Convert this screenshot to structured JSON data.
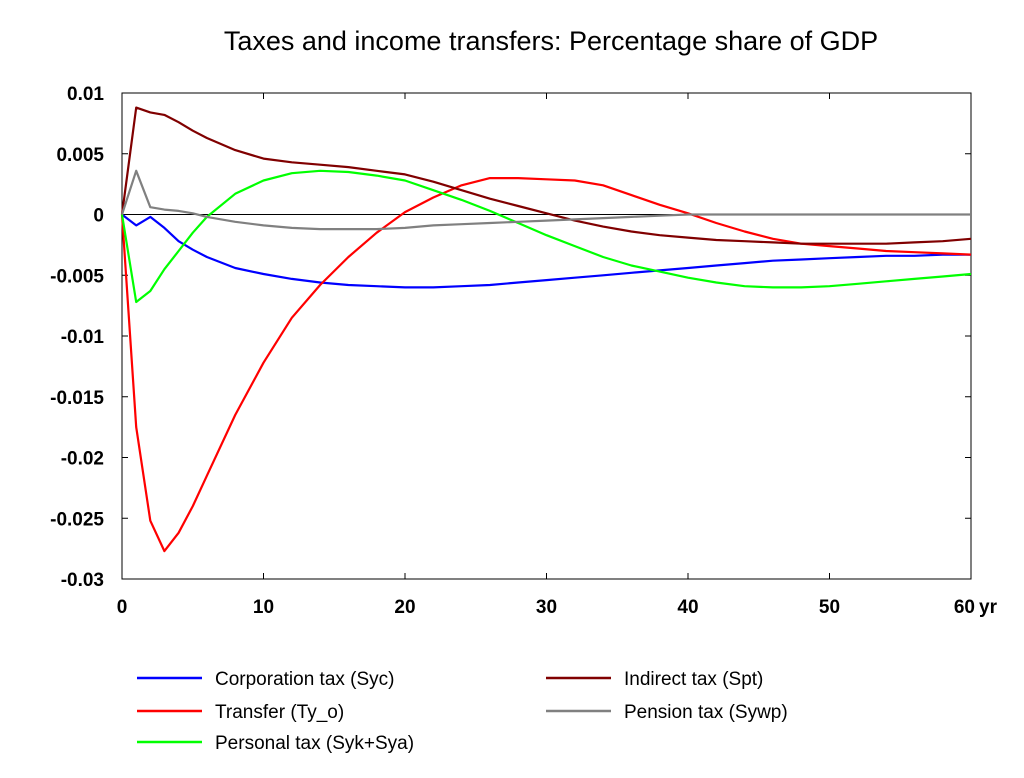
{
  "chart_data": {
    "type": "line",
    "title": "Taxes and income transfers: Percentage share of GDP",
    "xlabel": "",
    "ylabel": "",
    "x_unit_label": "yr",
    "xlim": [
      0,
      60
    ],
    "ylim": [
      -0.03,
      0.01
    ],
    "x_ticks": [
      0,
      10,
      20,
      30,
      40,
      50,
      60
    ],
    "x_tick_labels": [
      "0",
      "10",
      "20",
      "30",
      "40",
      "50",
      "60"
    ],
    "y_ticks": [
      0.01,
      0.005,
      0,
      -0.005,
      -0.01,
      -0.015,
      -0.02,
      -0.025,
      -0.03
    ],
    "y_tick_labels": [
      "0.01",
      "0.005",
      "0",
      "-0.005",
      "-0.01",
      "-0.015",
      "-0.02",
      "-0.025",
      "-0.03"
    ],
    "grid": false,
    "zero_line": true,
    "legend_position": "bottom",
    "x": [
      0,
      1,
      2,
      3,
      4,
      5,
      6,
      8,
      10,
      12,
      14,
      16,
      18,
      20,
      22,
      24,
      26,
      28,
      30,
      32,
      34,
      36,
      38,
      40,
      42,
      44,
      46,
      48,
      50,
      52,
      54,
      56,
      58,
      60
    ],
    "series": [
      {
        "name": "Corporation tax (Syc)",
        "color": "#0000ff",
        "values": [
          0,
          -0.0009,
          -0.0002,
          -0.0011,
          -0.0022,
          -0.0029,
          -0.0035,
          -0.0044,
          -0.0049,
          -0.0053,
          -0.0056,
          -0.0058,
          -0.0059,
          -0.006,
          -0.006,
          -0.0059,
          -0.0058,
          -0.0056,
          -0.0054,
          -0.0052,
          -0.005,
          -0.0048,
          -0.0046,
          -0.0044,
          -0.0042,
          -0.004,
          -0.0038,
          -0.0037,
          -0.0036,
          -0.0035,
          -0.0034,
          -0.0034,
          -0.0033,
          -0.0033
        ]
      },
      {
        "name": "Transfer (Ty_o)",
        "color": "#ff0000",
        "values": [
          0,
          -0.0175,
          -0.0252,
          -0.0277,
          -0.0262,
          -0.024,
          -0.0215,
          -0.0165,
          -0.0122,
          -0.0085,
          -0.0058,
          -0.0035,
          -0.0015,
          0.0002,
          0.0014,
          0.0024,
          0.003,
          0.003,
          0.0029,
          0.0028,
          0.0024,
          0.0016,
          0.0008,
          0.0001,
          -0.0007,
          -0.0014,
          -0.002,
          -0.0024,
          -0.0026,
          -0.0028,
          -0.003,
          -0.0031,
          -0.0032,
          -0.0033
        ]
      },
      {
        "name": "Personal tax (Syk+Sya)",
        "color": "#00ff00",
        "values": [
          0,
          -0.0072,
          -0.0063,
          -0.0045,
          -0.003,
          -0.0015,
          -0.0002,
          0.0017,
          0.0028,
          0.0034,
          0.0036,
          0.0035,
          0.0032,
          0.0028,
          0.002,
          0.0012,
          0.0003,
          -0.0007,
          -0.0017,
          -0.0026,
          -0.0035,
          -0.0042,
          -0.0047,
          -0.0052,
          -0.0056,
          -0.0059,
          -0.006,
          -0.006,
          -0.0059,
          -0.0057,
          -0.0055,
          -0.0053,
          -0.0051,
          -0.0049
        ]
      },
      {
        "name": "Indirect tax (Spt)",
        "color": "#800000",
        "values": [
          0,
          0.0088,
          0.0084,
          0.0082,
          0.0076,
          0.0069,
          0.0063,
          0.0053,
          0.0046,
          0.0043,
          0.0041,
          0.0039,
          0.0036,
          0.0033,
          0.0027,
          0.002,
          0.0013,
          0.0007,
          0.0001,
          -0.0005,
          -0.001,
          -0.0014,
          -0.0017,
          -0.0019,
          -0.0021,
          -0.0022,
          -0.0023,
          -0.0024,
          -0.0024,
          -0.0024,
          -0.0024,
          -0.0023,
          -0.0022,
          -0.002
        ]
      },
      {
        "name": "Pension tax (Sywp)",
        "color": "#808080",
        "values": [
          0,
          0.0036,
          0.0006,
          0.0004,
          0.0003,
          0.0001,
          -0.0002,
          -0.0006,
          -0.0009,
          -0.0011,
          -0.0012,
          -0.0012,
          -0.0012,
          -0.0011,
          -0.0009,
          -0.0008,
          -0.0007,
          -0.0006,
          -0.0005,
          -0.0004,
          -0.0003,
          -0.0002,
          -0.0001,
          0.0,
          0.0,
          0.0,
          0.0,
          0.0,
          0.0,
          0.0,
          0.0,
          0.0,
          0.0,
          0.0
        ]
      }
    ]
  }
}
